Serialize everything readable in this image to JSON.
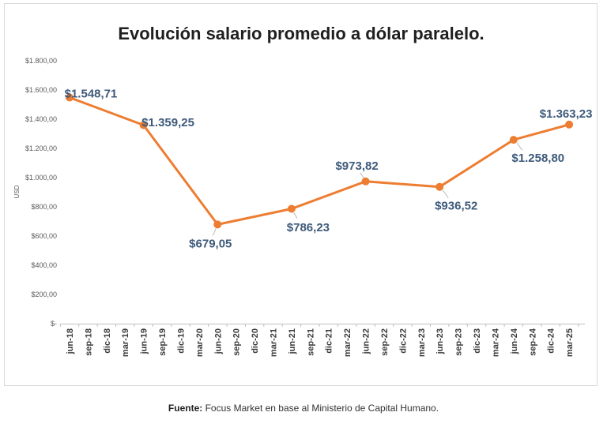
{
  "chart_data": {
    "type": "line",
    "title": "Evolución salario promedio a dólar paralelo.",
    "ylabel": "USD",
    "categories": [
      "jun-18",
      "sep-18",
      "dic-18",
      "mar-19",
      "jun-19",
      "sep-19",
      "dic-19",
      "mar-20",
      "jun-20",
      "sep-20",
      "dic-20",
      "mar-21",
      "jun-21",
      "sep-21",
      "dic-21",
      "mar-22",
      "jun-22",
      "sep-22",
      "dic-22",
      "mar-23",
      "jun-23",
      "sep-23",
      "dic-23",
      "mar-24",
      "jun-24",
      "sep-24",
      "dic-24",
      "mar-25"
    ],
    "ylim": [
      0,
      1800
    ],
    "yticks": [
      0,
      200,
      400,
      600,
      800,
      1000,
      1200,
      1400,
      1600,
      1800
    ],
    "ytick_labels": [
      "$-",
      "$200,00",
      "$400,00",
      "$600,00",
      "$800,00",
      "$1.000,00",
      "$1.200,00",
      "$1.400,00",
      "$1.600,00",
      "$1.800,00"
    ],
    "grid": false,
    "series": [
      {
        "values": [
          1548.71,
          null,
          null,
          null,
          1359.25,
          null,
          null,
          null,
          679.05,
          null,
          null,
          null,
          786.23,
          null,
          null,
          null,
          973.82,
          null,
          null,
          null,
          936.52,
          null,
          null,
          null,
          1258.8,
          null,
          null,
          1363.23
        ],
        "data_labels": [
          "$1.548,71",
          null,
          null,
          null,
          "$1.359,25",
          null,
          null,
          null,
          "$679,05",
          null,
          null,
          null,
          "$786,23",
          null,
          null,
          null,
          "$973,82",
          null,
          null,
          null,
          "$936,52",
          null,
          null,
          null,
          "$1.258,80",
          null,
          null,
          "$1.363,23"
        ],
        "color": "#ED7D31"
      }
    ],
    "data_label_color": "#3E5A7A"
  },
  "source": {
    "label": "Fuente:",
    "text": "Focus Market en base al Ministerio de Capital Humano."
  }
}
